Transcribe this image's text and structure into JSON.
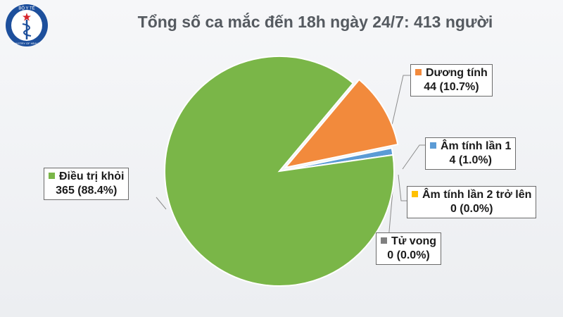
{
  "header": {
    "title": "Tổng số ca mắc đến 18h ngày 24/7: 413 người",
    "logo": {
      "icon": "ministry-of-health-logo-icon",
      "top_text": "BỘ Y TẾ",
      "bottom_text": "MINISTRY OF HEALTH"
    }
  },
  "chart_data": {
    "type": "pie",
    "title": "Tổng số ca mắc đến 18h ngày 24/7: 413 người",
    "total": 413,
    "slices": [
      {
        "label": "Dương tính",
        "value": 44,
        "value_text": "44 (10.7%)",
        "color": "#f28a3c",
        "exploded": true
      },
      {
        "label": "Âm tính lần 1",
        "value": 4,
        "value_text": "4 (1.0%)",
        "color": "#5b9bd5",
        "exploded": false
      },
      {
        "label": "Âm tính lần 2 trở lên",
        "value": 0,
        "value_text": "0 (0.0%)",
        "color": "#ffc000",
        "exploded": false
      },
      {
        "label": "Tử vong",
        "value": 0,
        "value_text": "0 (0.0%)",
        "color": "#7f7f7f",
        "exploded": false
      },
      {
        "label": "Điều trị khỏi",
        "value": 365,
        "value_text": "365 (88.4%)",
        "color": "#7ab648",
        "exploded": false
      }
    ]
  }
}
